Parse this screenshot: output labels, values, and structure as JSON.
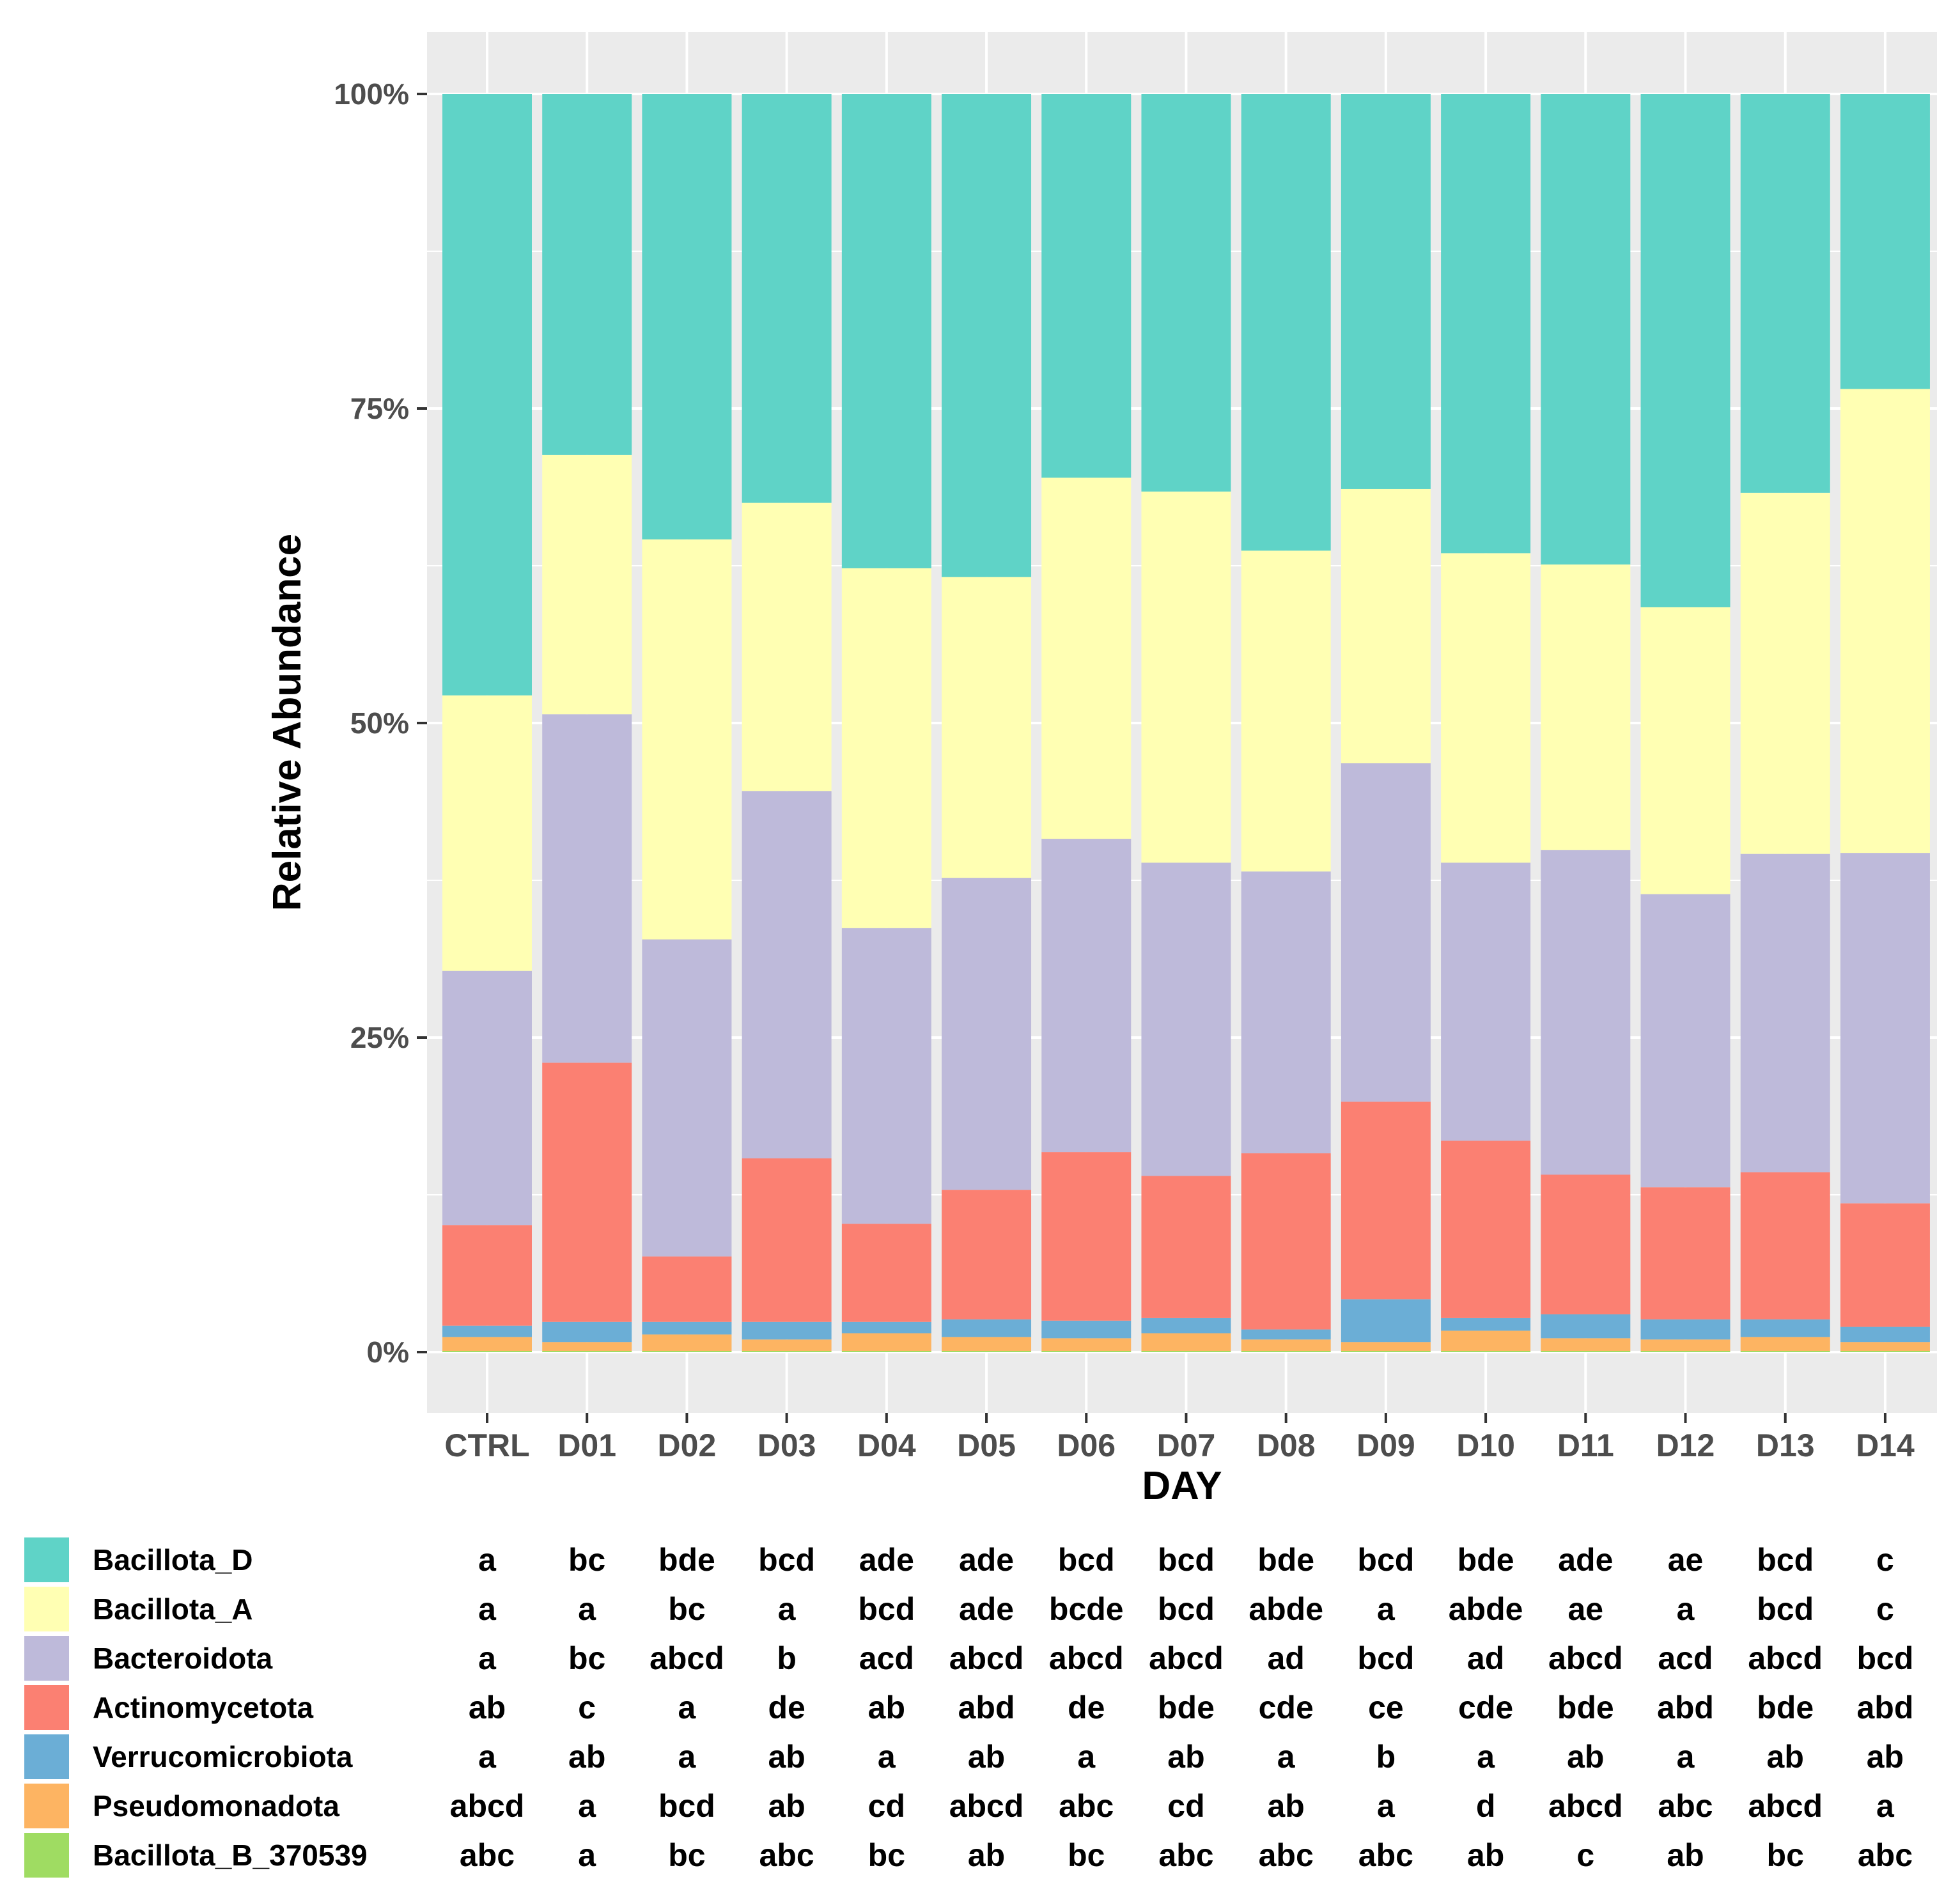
{
  "chart_data": {
    "type": "bar",
    "stacked": true,
    "xlabel": "DAY",
    "ylabel": "Relative Abundance",
    "ylim": [
      0,
      100
    ],
    "y_ticks": [
      "0%",
      "25%",
      "50%",
      "75%",
      "100%"
    ],
    "categories": [
      "CTRL",
      "D01",
      "D02",
      "D03",
      "D04",
      "D05",
      "D06",
      "D07",
      "D08",
      "D09",
      "D10",
      "D11",
      "D12",
      "D13",
      "D14"
    ],
    "series": [
      {
        "name": "Bacillota_B_370539",
        "color": "#9fdc62",
        "values": [
          0.1,
          0.1,
          0.1,
          0.1,
          0.1,
          0.1,
          0.1,
          0.1,
          0.1,
          0.1,
          0.1,
          0.1,
          0.1,
          0.1,
          0.1
        ]
      },
      {
        "name": "Pseudomonadota",
        "color": "#fdb462",
        "values": [
          1.1,
          0.7,
          1.3,
          0.9,
          1.4,
          1.1,
          1.0,
          1.4,
          0.9,
          0.7,
          1.6,
          1.0,
          0.9,
          1.1,
          0.7
        ]
      },
      {
        "name": "Verrucomicrobiota",
        "color": "#6baed6",
        "values": [
          0.9,
          1.6,
          1.0,
          1.4,
          0.9,
          1.4,
          1.4,
          1.2,
          0.8,
          3.4,
          1.0,
          1.9,
          1.6,
          1.4,
          1.2
        ]
      },
      {
        "name": "Actinomycetota",
        "color": "#fb8072",
        "values": [
          8.0,
          20.6,
          5.2,
          13.0,
          7.8,
          10.3,
          13.4,
          11.3,
          14.0,
          15.7,
          14.1,
          11.1,
          10.5,
          11.7,
          9.8
        ]
      },
      {
        "name": "Bacteroidota",
        "color": "#bebada",
        "values": [
          20.2,
          27.7,
          25.2,
          29.2,
          23.5,
          24.8,
          24.9,
          24.9,
          22.4,
          26.9,
          22.1,
          25.8,
          23.3,
          25.3,
          27.8
        ]
      },
      {
        "name": "Bacillota_A",
        "color": "#ffffb3",
        "values": [
          21.9,
          20.6,
          31.8,
          22.9,
          28.6,
          23.9,
          28.7,
          29.5,
          25.5,
          21.8,
          24.6,
          22.7,
          22.8,
          28.7,
          36.8
        ]
      },
      {
        "name": "Bacillota_D",
        "color": "#5fd3c7",
        "values": [
          47.8,
          28.7,
          35.4,
          32.5,
          37.7,
          38.4,
          30.5,
          31.6,
          36.3,
          31.4,
          36.5,
          37.4,
          40.8,
          31.7,
          23.4
        ]
      }
    ],
    "legend": [
      {
        "name": "Bacillota_D",
        "color": "#5fd3c7",
        "letters": [
          "a",
          "bc",
          "bde",
          "bcd",
          "ade",
          "ade",
          "bcd",
          "bcd",
          "bde",
          "bcd",
          "bde",
          "ade",
          "ae",
          "bcd",
          "c"
        ]
      },
      {
        "name": "Bacillota_A",
        "color": "#ffffb3",
        "letters": [
          "a",
          "a",
          "bc",
          "a",
          "bcd",
          "ade",
          "bcde",
          "bcd",
          "abde",
          "a",
          "abde",
          "ae",
          "a",
          "bcd",
          "c"
        ]
      },
      {
        "name": "Bacteroidota",
        "color": "#bebada",
        "letters": [
          "a",
          "bc",
          "abcd",
          "b",
          "acd",
          "abcd",
          "abcd",
          "abcd",
          "ad",
          "bcd",
          "ad",
          "abcd",
          "acd",
          "abcd",
          "bcd"
        ]
      },
      {
        "name": "Actinomycetota",
        "color": "#fb8072",
        "letters": [
          "ab",
          "c",
          "a",
          "de",
          "ab",
          "abd",
          "de",
          "bde",
          "cde",
          "ce",
          "cde",
          "bde",
          "abd",
          "bde",
          "abd"
        ]
      },
      {
        "name": "Verrucomicrobiota",
        "color": "#6baed6",
        "letters": [
          "a",
          "ab",
          "a",
          "ab",
          "a",
          "ab",
          "a",
          "ab",
          "a",
          "b",
          "a",
          "ab",
          "a",
          "ab",
          "ab"
        ]
      },
      {
        "name": "Pseudomonadota",
        "color": "#fdb462",
        "letters": [
          "abcd",
          "a",
          "bcd",
          "ab",
          "cd",
          "abcd",
          "abc",
          "cd",
          "ab",
          "a",
          "d",
          "abcd",
          "abc",
          "abcd",
          "a"
        ]
      },
      {
        "name": "Bacillota_B_370539",
        "color": "#9fdc62",
        "letters": [
          "abc",
          "a",
          "bc",
          "abc",
          "bc",
          "ab",
          "bc",
          "abc",
          "abc",
          "abc",
          "ab",
          "c",
          "ab",
          "bc",
          "abc"
        ]
      }
    ]
  }
}
